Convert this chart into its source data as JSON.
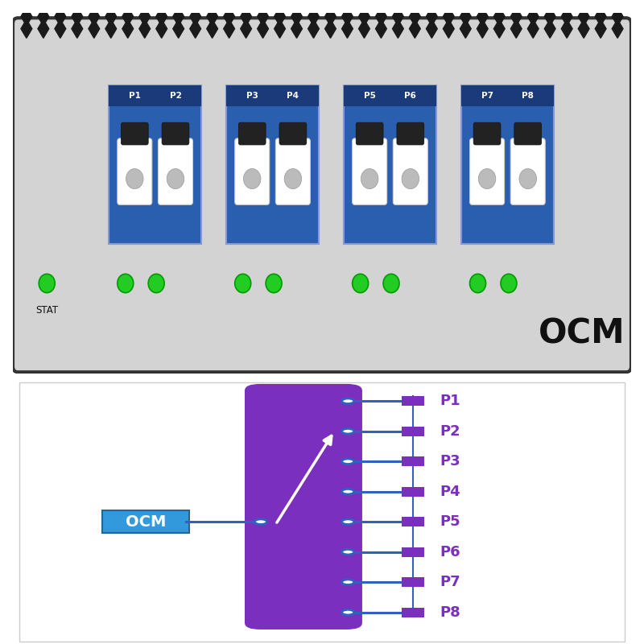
{
  "bg_color_top": "#d3d3d3",
  "bg_color_bottom": "#ffffff",
  "border_color": "#333333",
  "connector_color": "#1a1a1a",
  "blue_module_color": "#2a5fb0",
  "blue_module_label_bg": "#1a3a7a",
  "green_led_color": "#22cc22",
  "purple_color": "#7b2fbe",
  "blue_line_color": "#3060c0",
  "ocm_box_color": "#3399dd",
  "port_labels": [
    "P1",
    "P2",
    "P3",
    "P4",
    "P5",
    "P6",
    "P7",
    "P8"
  ],
  "module_groups": [
    [
      "P1",
      "P2"
    ],
    [
      "P3",
      "P4"
    ],
    [
      "P5",
      "P6"
    ],
    [
      "P7",
      "P8"
    ]
  ],
  "stat_label": "STAT",
  "ocm_label": "OCM",
  "bottom_ocm_label": "OCM"
}
